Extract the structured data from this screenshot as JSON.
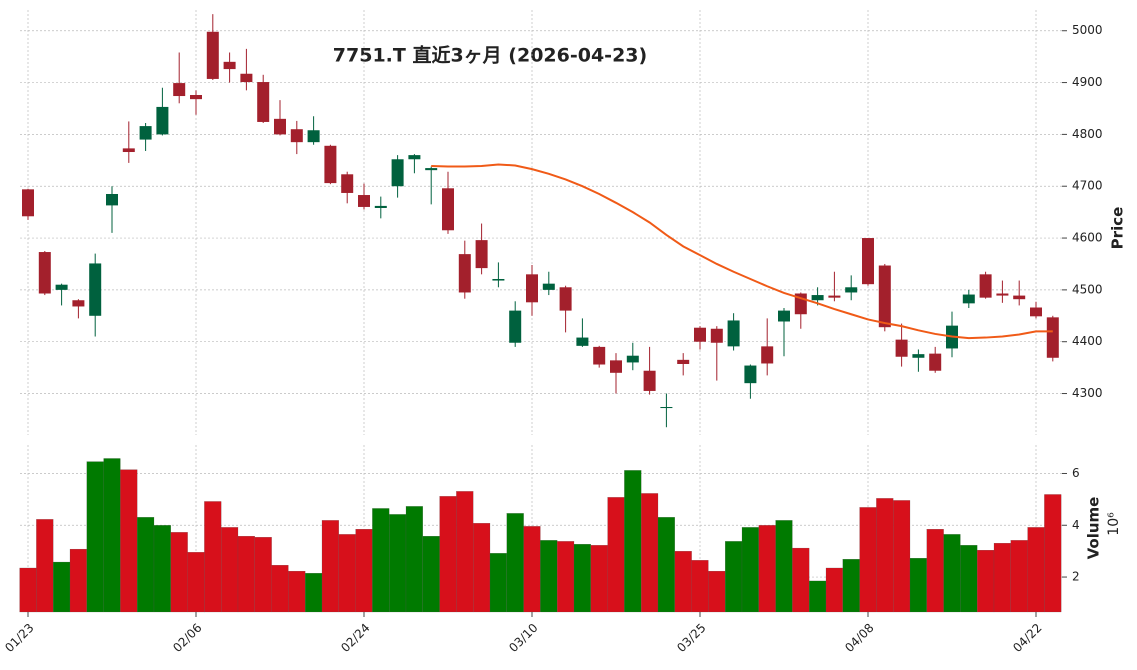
{
  "chart_data": {
    "type": "candlestick",
    "title": "7751.T  直近3ヶ月  (2026-04-23)",
    "categories": [
      "01/23",
      null,
      null,
      null,
      null,
      null,
      null,
      null,
      null,
      null,
      "02/06",
      null,
      null,
      null,
      null,
      null,
      null,
      null,
      null,
      null,
      "02/24",
      null,
      null,
      null,
      null,
      null,
      null,
      null,
      null,
      null,
      "03/10",
      null,
      null,
      null,
      null,
      null,
      null,
      null,
      null,
      null,
      "03/25",
      null,
      null,
      null,
      null,
      null,
      null,
      null,
      null,
      null,
      "04/08",
      null,
      null,
      null,
      null,
      null,
      null,
      null,
      null,
      null,
      "04/22",
      null
    ],
    "open": [
      4694,
      4573,
      4500,
      4480,
      4450,
      4663,
      4773,
      4790,
      4800,
      4899,
      4876,
      4998,
      4940,
      4917,
      4901,
      4830,
      4810,
      4785,
      4778,
      4723,
      4683,
      4658,
      4700,
      4752,
      4731,
      4696,
      4569,
      4596,
      4518,
      4398,
      4530,
      4500,
      4505,
      4392,
      4390,
      4364,
      4360,
      4344,
      4272,
      4365,
      4427,
      4425,
      4391,
      4320,
      4391,
      4439,
      4493,
      4480,
      4489,
      4495,
      4600,
      4547,
      4404,
      4369,
      4377,
      4387,
      4474,
      4530,
      4493,
      4489,
      4466,
      4447
    ],
    "high": [
      4695,
      4575,
      4512,
      4482,
      4570,
      4700,
      4825,
      4822,
      4890,
      4958,
      4885,
      5032,
      4958,
      4965,
      4915,
      4866,
      4826,
      4835,
      4780,
      4728,
      4705,
      4680,
      4760,
      4762,
      4738,
      4728,
      4595,
      4628,
      4553,
      4478,
      4548,
      4535,
      4508,
      4445,
      4392,
      4378,
      4398,
      4390,
      4300,
      4378,
      4430,
      4430,
      4455,
      4356,
      4445,
      4465,
      4495,
      4505,
      4535,
      4528,
      4600,
      4550,
      4435,
      4385,
      4390,
      4458,
      4500,
      4535,
      4518,
      4518,
      4477,
      4450
    ],
    "low": [
      4635,
      4490,
      4470,
      4445,
      4410,
      4610,
      4745,
      4768,
      4798,
      4860,
      4838,
      4905,
      4900,
      4885,
      4822,
      4798,
      4762,
      4780,
      4704,
      4667,
      4655,
      4638,
      4678,
      4725,
      4665,
      4608,
      4483,
      4530,
      4505,
      4390,
      4450,
      4490,
      4418,
      4390,
      4350,
      4300,
      4345,
      4298,
      4235,
      4335,
      4385,
      4325,
      4383,
      4290,
      4335,
      4372,
      4425,
      4470,
      4478,
      4480,
      4508,
      4420,
      4352,
      4342,
      4340,
      4370,
      4465,
      4483,
      4475,
      4470,
      4445,
      4362
    ],
    "close": [
      4642,
      4493,
      4510,
      4468,
      4551,
      4685,
      4766,
      4816,
      4853,
      4874,
      4868,
      4907,
      4926,
      4901,
      4824,
      4800,
      4785,
      4808,
      4706,
      4687,
      4660,
      4662,
      4752,
      4760,
      4735,
      4615,
      4495,
      4542,
      4521,
      4460,
      4476,
      4512,
      4460,
      4408,
      4356,
      4340,
      4373,
      4305,
      4274,
      4357,
      4400,
      4398,
      4441,
      4354,
      4358,
      4460,
      4453,
      4490,
      4485,
      4505,
      4511,
      4428,
      4371,
      4376,
      4344,
      4431,
      4491,
      4485,
      4489,
      4482,
      4449,
      4369
    ],
    "up_color": "#00613e",
    "down_color": "#a3202c",
    "ylim": [
      4220,
      5040
    ],
    "yticks": [
      4300,
      4400,
      4500,
      4600,
      4700,
      4800,
      4900,
      5000
    ],
    "ylabel": "Price",
    "grid": true,
    "ma": {
      "color": "#f05a17",
      "values": [
        null,
        null,
        null,
        null,
        null,
        null,
        null,
        null,
        null,
        null,
        null,
        null,
        null,
        null,
        null,
        null,
        null,
        null,
        null,
        null,
        null,
        null,
        null,
        null,
        4739,
        4738,
        4738,
        4739,
        4742,
        4740,
        4733,
        4724,
        4713,
        4700,
        4685,
        4668,
        4650,
        4630,
        4606,
        4584,
        4567,
        4550,
        4535,
        4521,
        4507,
        4494,
        4484,
        4474,
        4463,
        4453,
        4443,
        4436,
        4430,
        4422,
        4415,
        4410,
        4407,
        4408,
        4410,
        4414,
        4420,
        4420
      ]
    },
    "volume": {
      "values": [
        2.35,
        4.23,
        2.58,
        3.08,
        6.46,
        6.58,
        6.15,
        4.31,
        4.0,
        3.73,
        2.96,
        4.92,
        3.92,
        3.58,
        3.54,
        2.46,
        2.23,
        2.15,
        4.19,
        3.65,
        3.85,
        4.65,
        4.42,
        4.73,
        3.58,
        5.12,
        5.31,
        4.08,
        2.92,
        4.46,
        3.96,
        3.42,
        3.38,
        3.27,
        3.23,
        5.08,
        6.12,
        5.23,
        4.31,
        3.0,
        2.65,
        2.23,
        3.38,
        3.92,
        4.0,
        4.19,
        3.12,
        1.85,
        2.35,
        2.69,
        4.69,
        5.04,
        4.96,
        2.73,
        3.85,
        3.65,
        3.23,
        3.04,
        3.31,
        3.42,
        3.92,
        5.19
      ],
      "up_color": "#007a00",
      "down_color": "#d7101b",
      "ylim": [
        0.65,
        7.1
      ],
      "yticks": [
        2,
        4,
        6
      ],
      "ylabel": "Volume",
      "scale_label": "10⁶"
    }
  }
}
